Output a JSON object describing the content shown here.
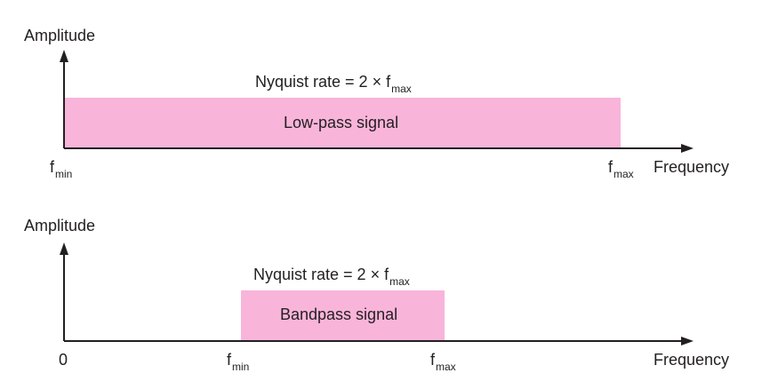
{
  "diagrams": [
    {
      "y_axis_label": "Amplitude",
      "x_axis_label": "Frequency",
      "band_label": "Low-pass signal",
      "nyquist": {
        "text": "Nyquist rate = 2 × f",
        "subscript": "max"
      },
      "ticks": [
        {
          "main": "f",
          "sub": "min"
        },
        {
          "main": "f",
          "sub": "max"
        }
      ],
      "colors": {
        "band": "#f9b4da",
        "axis": "#231f20"
      }
    },
    {
      "y_axis_label": "Amplitude",
      "x_axis_label": "Frequency",
      "band_label": "Bandpass signal",
      "nyquist": {
        "text": "Nyquist rate = 2 × f",
        "subscript": "max"
      },
      "origin_label": "0",
      "ticks": [
        {
          "main": "f",
          "sub": "min"
        },
        {
          "main": "f",
          "sub": "max"
        }
      ],
      "colors": {
        "band": "#f9b4da",
        "axis": "#231f20"
      }
    }
  ]
}
